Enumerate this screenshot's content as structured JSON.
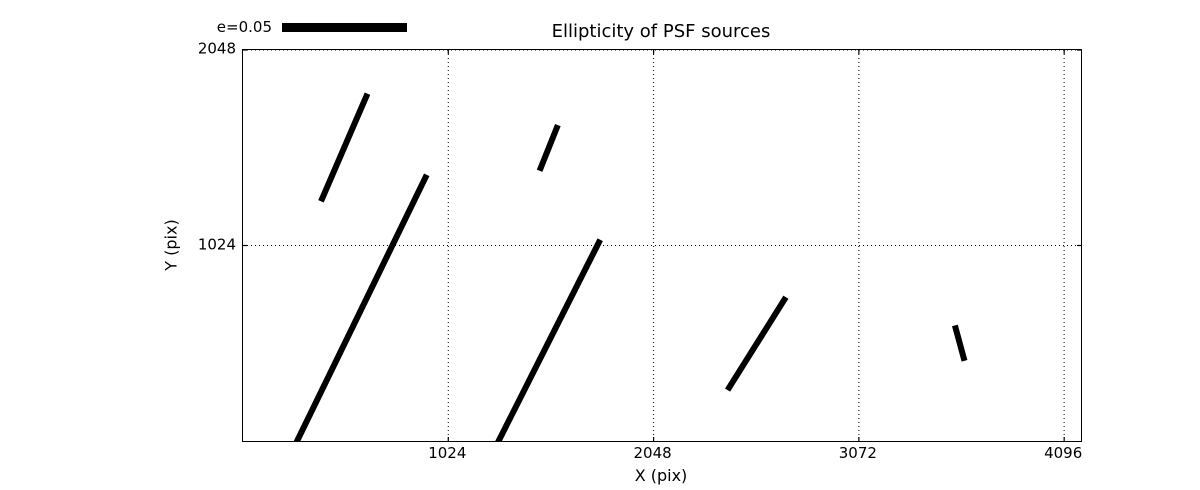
{
  "chart_data": {
    "type": "line",
    "subtype": "ellipticity-whisker-map",
    "title": "Ellipticity of PSF sources",
    "xlabel": "X (pix)",
    "ylabel": "Y (pix)",
    "xlim": [
      0,
      4180
    ],
    "ylim": [
      0,
      2048
    ],
    "xticks": [
      1024,
      2048,
      3072,
      4096
    ],
    "yticks": [
      1024,
      2048
    ],
    "grid": "dotted",
    "legend": {
      "label": "e=0.05",
      "position": "upper-left-outside"
    },
    "segments": [
      {
        "x1": 395,
        "y1": 1270,
        "x2": 615,
        "y2": 1805
      },
      {
        "x1": 270,
        "y1": 0,
        "x2": 910,
        "y2": 1380
      },
      {
        "x1": 1485,
        "y1": 1430,
        "x2": 1565,
        "y2": 1640
      },
      {
        "x1": 1275,
        "y1": 0,
        "x2": 1775,
        "y2": 1040
      },
      {
        "x1": 2425,
        "y1": 280,
        "x2": 2700,
        "y2": 740
      },
      {
        "x1": 3555,
        "y1": 590,
        "x2": 3595,
        "y2": 435
      }
    ],
    "colors": {
      "line": "#000000",
      "grid": "#000000",
      "spine": "#000000",
      "background": "#ffffff",
      "text": "#000000"
    }
  }
}
